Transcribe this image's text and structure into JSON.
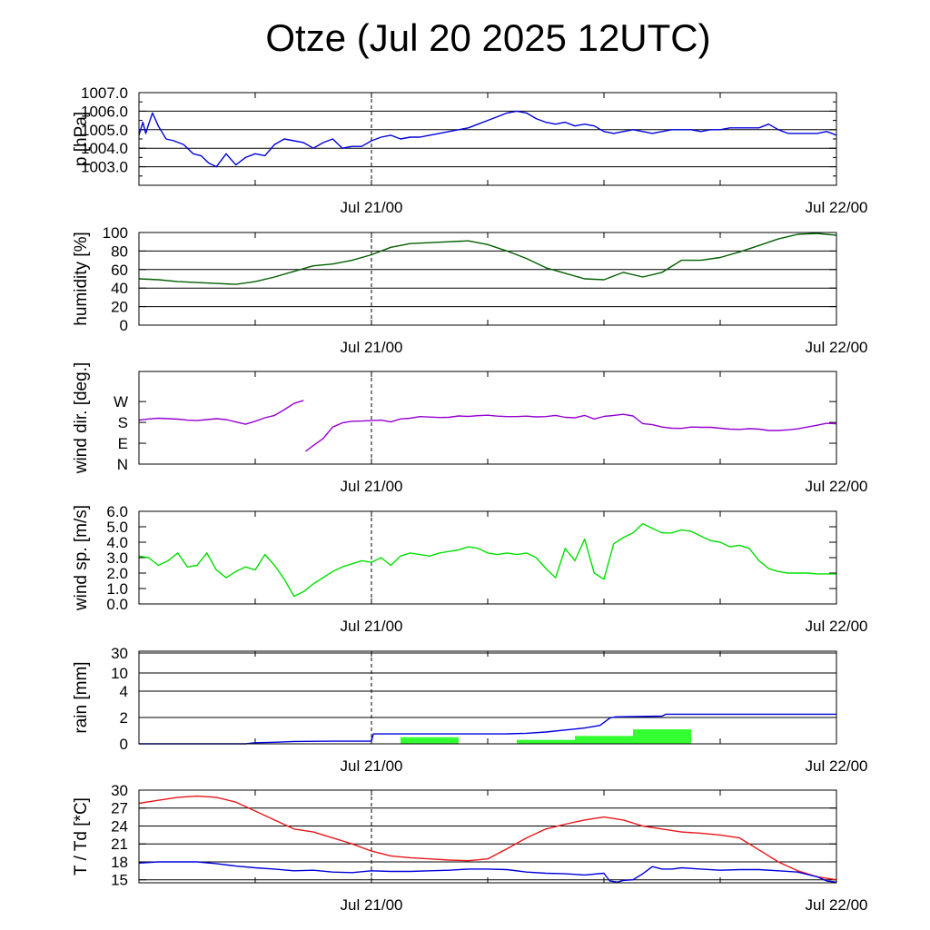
{
  "title": "Otze (Jul 20 2025 12UTC)",
  "colors": {
    "pressure": "#0000dd",
    "humidity": "#005f00",
    "wind_dir": "#9400d3",
    "wind_speed": "#00e000",
    "rain_cumulative": "#0000dd",
    "rain_bars": "#33ff33",
    "temperature": "#e8161a",
    "dewpoint": "#0000dd"
  },
  "chart_data": [
    {
      "type": "line",
      "ylabel": "p [hPa]",
      "x_ticks": [
        "Jul 21/00",
        "Jul 22/00"
      ],
      "x_range_hours": [
        0,
        36
      ],
      "marker_line": "Jul 21/00",
      "ylim": [
        1002.0,
        1007.0
      ],
      "y_ticks": [
        "1003.0",
        "1004.0",
        "1005.0",
        "1006.0",
        "1007.0"
      ],
      "grid": true,
      "series": [
        {
          "color_key": "pressure",
          "x": [
            0,
            0.2,
            0.35,
            0.5,
            0.7,
            1,
            1.4,
            1.8,
            2.3,
            2.8,
            3.2,
            3.6,
            4,
            4.5,
            5,
            5.5,
            6,
            6.5,
            7,
            7.5,
            8,
            8.5,
            9,
            9.5,
            10,
            10.5,
            11,
            11.5,
            12,
            12.5,
            13,
            13.5,
            14,
            14.5,
            15,
            15.5,
            16,
            16.5,
            17,
            17.5,
            18,
            18.5,
            19,
            19.5,
            20,
            20.5,
            21,
            21.5,
            22,
            22.5,
            23,
            23.5,
            24,
            24.5,
            25,
            25.5,
            26,
            26.5,
            27,
            27.5,
            28,
            28.5,
            29,
            29.5,
            30,
            30.5,
            31,
            31.5,
            32,
            32.5,
            33,
            33.5,
            34,
            34.5,
            35,
            35.5,
            36
          ],
          "y": [
            1004.7,
            1005.4,
            1004.8,
            1005.3,
            1005.9,
            1005.2,
            1004.5,
            1004.4,
            1004.2,
            1003.7,
            1003.6,
            1003.2,
            1003.0,
            1003.7,
            1003.1,
            1003.5,
            1003.7,
            1003.6,
            1004.2,
            1004.5,
            1004.4,
            1004.3,
            1004.0,
            1004.3,
            1004.5,
            1004.0,
            1004.1,
            1004.1,
            1004.4,
            1004.6,
            1004.7,
            1004.5,
            1004.6,
            1004.6,
            1004.7,
            1004.8,
            1004.9,
            1005.0,
            1005.1,
            1005.3,
            1005.5,
            1005.7,
            1005.9,
            1006.0,
            1005.9,
            1005.6,
            1005.4,
            1005.3,
            1005.4,
            1005.2,
            1005.3,
            1005.2,
            1004.9,
            1004.8,
            1004.9,
            1005.0,
            1004.9,
            1004.8,
            1004.9,
            1005.0,
            1005.0,
            1005.0,
            1004.9,
            1005.0,
            1005.0,
            1005.1,
            1005.1,
            1005.1,
            1005.1,
            1005.3,
            1005.0,
            1004.8,
            1004.8,
            1004.8,
            1004.8,
            1004.9,
            1004.7
          ]
        }
      ]
    },
    {
      "type": "line",
      "ylabel": "humidity [%]",
      "x_ticks": [
        "Jul 21/00",
        "Jul 22/00"
      ],
      "x_range_hours": [
        0,
        36
      ],
      "marker_line": "Jul 21/00",
      "ylim": [
        0,
        100
      ],
      "y_ticks": [
        "0",
        "20",
        "40",
        "60",
        "80",
        "100"
      ],
      "grid": true,
      "series": [
        {
          "color_key": "humidity",
          "x": [
            0,
            1,
            2,
            3,
            4,
            5,
            6,
            7,
            8,
            9,
            10,
            11,
            12,
            13,
            14,
            15,
            16,
            17,
            18,
            19,
            20,
            21,
            22,
            23,
            24,
            25,
            26,
            27,
            28,
            29,
            30,
            31,
            32,
            33,
            34,
            35,
            36
          ],
          "y": [
            50,
            49,
            47,
            46,
            45,
            44,
            47,
            52,
            58,
            64,
            66,
            70,
            76,
            84,
            88,
            89,
            90,
            91,
            87,
            80,
            72,
            62,
            56,
            50,
            49,
            57,
            52,
            57,
            70,
            70,
            73,
            79,
            86,
            93,
            98,
            99,
            97
          ]
        }
      ]
    },
    {
      "type": "line",
      "ylabel": "wind dir. [deg.]",
      "x_ticks": [
        "Jul 21/00",
        "Jul 22/00"
      ],
      "x_range_hours": [
        0,
        36
      ],
      "marker_line": "Jul 21/00",
      "ylim": [
        0,
        400
      ],
      "y_ticks": [
        "N",
        "E",
        "S",
        "W"
      ],
      "y_tick_values": [
        0,
        90,
        180,
        270
      ],
      "grid": false,
      "series": [
        {
          "color_key": "wind_dir",
          "segment": 1,
          "x": [
            0,
            0.5,
            1,
            1.5,
            2,
            2.5,
            3,
            3.5,
            4,
            4.5,
            5,
            5.5,
            6,
            6.5,
            7,
            7.5,
            8,
            8.5
          ],
          "y": [
            190,
            195,
            198,
            196,
            194,
            190,
            188,
            192,
            196,
            192,
            182,
            172,
            185,
            200,
            210,
            235,
            262,
            275
          ]
        },
        {
          "color_key": "wind_dir",
          "segment": 2,
          "x": [
            8.6,
            9,
            9.5,
            10,
            10.5,
            11,
            11.5,
            12,
            12.5,
            13,
            13.5,
            14,
            14.5,
            15,
            15.5,
            16,
            16.5,
            17,
            17.5,
            18,
            18.5,
            19,
            19.5,
            20,
            20.5,
            21,
            21.5,
            22,
            22.5,
            23,
            23.5,
            24,
            24.5,
            25,
            25.5,
            26,
            26.5,
            27,
            27.5,
            28,
            28.5,
            29,
            29.5,
            30,
            30.5,
            31,
            31.5,
            32,
            32.5,
            33,
            33.5,
            34,
            34.5,
            35,
            35.5,
            36
          ],
          "y": [
            55,
            80,
            110,
            160,
            178,
            185,
            186,
            188,
            190,
            182,
            195,
            198,
            205,
            203,
            201,
            202,
            208,
            206,
            209,
            211,
            207,
            205,
            205,
            207,
            204,
            205,
            210,
            202,
            200,
            210,
            195,
            206,
            210,
            215,
            208,
            175,
            170,
            160,
            155,
            154,
            160,
            159,
            159,
            155,
            151,
            150,
            153,
            151,
            145,
            145,
            148,
            152,
            160,
            168,
            176,
            174
          ]
        }
      ]
    },
    {
      "type": "line",
      "ylabel": "wind sp. [m/s]",
      "x_ticks": [
        "Jul 21/00",
        "Jul 22/00"
      ],
      "x_range_hours": [
        0,
        36
      ],
      "marker_line": "Jul 21/00",
      "ylim": [
        0.0,
        6.0
      ],
      "y_ticks": [
        "0.0",
        "1.0",
        "2.0",
        "3.0",
        "4.0",
        "5.0",
        "6.0"
      ],
      "grid": false,
      "series": [
        {
          "color_key": "wind_speed",
          "x": [
            0,
            0.5,
            1,
            1.5,
            2,
            2.5,
            3,
            3.5,
            4,
            4.5,
            5,
            5.5,
            6,
            6.5,
            7,
            7.5,
            8,
            8.5,
            9,
            9.5,
            10,
            10.5,
            11,
            11.5,
            12,
            12.5,
            13,
            13.5,
            14,
            14.5,
            15,
            15.5,
            16,
            16.5,
            17,
            17.5,
            18,
            18.5,
            19,
            19.5,
            20,
            20.5,
            21,
            21.5,
            22,
            22.5,
            23,
            23.5,
            24,
            24.5,
            25,
            25.5,
            26,
            26.5,
            27,
            27.5,
            28,
            28.5,
            29,
            29.5,
            30,
            30.5,
            31,
            31.5,
            32,
            32.5,
            33,
            33.5,
            34,
            34.5,
            35,
            35.5,
            36
          ],
          "y": [
            3.1,
            3.0,
            2.5,
            2.8,
            3.3,
            2.4,
            2.5,
            3.3,
            2.2,
            1.7,
            2.1,
            2.4,
            2.2,
            3.2,
            2.5,
            1.6,
            0.5,
            0.8,
            1.3,
            1.7,
            2.1,
            2.4,
            2.6,
            2.8,
            2.7,
            3.0,
            2.5,
            3.1,
            3.3,
            3.2,
            3.1,
            3.3,
            3.4,
            3.5,
            3.7,
            3.6,
            3.3,
            3.2,
            3.3,
            3.2,
            3.3,
            3.0,
            2.3,
            1.7,
            3.6,
            2.8,
            4.2,
            2.0,
            1.6,
            3.9,
            4.3,
            4.6,
            5.2,
            4.9,
            4.6,
            4.6,
            4.8,
            4.7,
            4.4,
            4.1,
            4.0,
            3.7,
            3.8,
            3.6,
            2.8,
            2.3,
            2.1,
            2.0,
            2.0,
            2.0,
            1.95,
            1.95,
            1.95
          ]
        }
      ]
    },
    {
      "type": "bar",
      "ylabel": "rain [mm]",
      "x_ticks": [
        "Jul 21/00",
        "Jul 22/00"
      ],
      "x_range_hours": [
        0,
        36
      ],
      "marker_line": "Jul 21/00",
      "y_ticks": [
        "0",
        "2",
        "4",
        "10",
        "30"
      ],
      "y_tick_values": [
        0,
        2,
        4,
        10,
        30
      ],
      "grid": true,
      "bars": [
        {
          "x_start": 13.5,
          "x_end": 16.5,
          "value": 0.5
        },
        {
          "x_start": 19.5,
          "x_end": 22.5,
          "value": 0.3
        },
        {
          "x_start": 22.5,
          "x_end": 25.5,
          "value": 0.6
        },
        {
          "x_start": 25.5,
          "x_end": 28.5,
          "value": 1.1
        }
      ],
      "series": [
        {
          "color_key": "rain_cumulative",
          "x": [
            0,
            4,
            5.5,
            6,
            7,
            8,
            10,
            12,
            12.1,
            15,
            18,
            19,
            20,
            21,
            22,
            23,
            23.8,
            24.3,
            24.6,
            27,
            27.2,
            30,
            36
          ],
          "y": [
            0,
            0,
            0,
            0.08,
            0.12,
            0.18,
            0.2,
            0.2,
            0.75,
            0.75,
            0.75,
            0.76,
            0.8,
            0.9,
            1.05,
            1.2,
            1.4,
            1.95,
            2.05,
            2.1,
            2.25,
            2.25,
            2.25
          ]
        }
      ]
    },
    {
      "type": "line",
      "ylabel": "T / Td [*C]",
      "x_ticks": [
        "Jul 21/00",
        "Jul 22/00"
      ],
      "x_range_hours": [
        0,
        36
      ],
      "marker_line": "Jul 21/00",
      "ylim": [
        14.5,
        30.0
      ],
      "y_ticks": [
        "15",
        "18",
        "21",
        "24",
        "27",
        "30"
      ],
      "grid": true,
      "series": [
        {
          "color_key": "temperature",
          "x": [
            0,
            1,
            2,
            3,
            4,
            5,
            6,
            7,
            8,
            9,
            10,
            11,
            12,
            13,
            14,
            15,
            16,
            17,
            18,
            19,
            20,
            21,
            22,
            23,
            24,
            25,
            26,
            27,
            28,
            29,
            30,
            31,
            32,
            33,
            34,
            35,
            36
          ],
          "y": [
            27.8,
            28.3,
            28.8,
            29.0,
            28.8,
            28.0,
            26.5,
            25.0,
            23.5,
            23.0,
            22.0,
            21.0,
            19.8,
            19.0,
            18.7,
            18.5,
            18.3,
            18.2,
            18.5,
            20.2,
            22.0,
            23.5,
            24.3,
            25.0,
            25.5,
            25.0,
            24.0,
            23.5,
            23.0,
            22.8,
            22.5,
            22.0,
            20.0,
            18.0,
            16.5,
            15.5,
            15.0
          ]
        },
        {
          "color_key": "dewpoint",
          "x": [
            0,
            1,
            2,
            3,
            4,
            5,
            6,
            7,
            8,
            9,
            10,
            11,
            12,
            13,
            14,
            15,
            16,
            17,
            18,
            19,
            20,
            21,
            22,
            23,
            24,
            24.3,
            24.7,
            25,
            25.5,
            26,
            26.5,
            27,
            27.5,
            28,
            29,
            30,
            31,
            32,
            33,
            34,
            35,
            35.5,
            36
          ],
          "y": [
            17.8,
            18.0,
            18.0,
            18.0,
            17.7,
            17.3,
            17.0,
            16.8,
            16.5,
            16.6,
            16.3,
            16.2,
            16.5,
            16.4,
            16.4,
            16.5,
            16.6,
            16.8,
            16.8,
            16.7,
            16.3,
            16.1,
            16.0,
            15.8,
            16.1,
            14.8,
            14.6,
            14.9,
            15.0,
            16.0,
            17.2,
            16.8,
            16.8,
            17.0,
            16.8,
            16.6,
            16.7,
            16.7,
            16.5,
            16.3,
            15.5,
            14.8,
            14.6
          ]
        }
      ]
    }
  ]
}
